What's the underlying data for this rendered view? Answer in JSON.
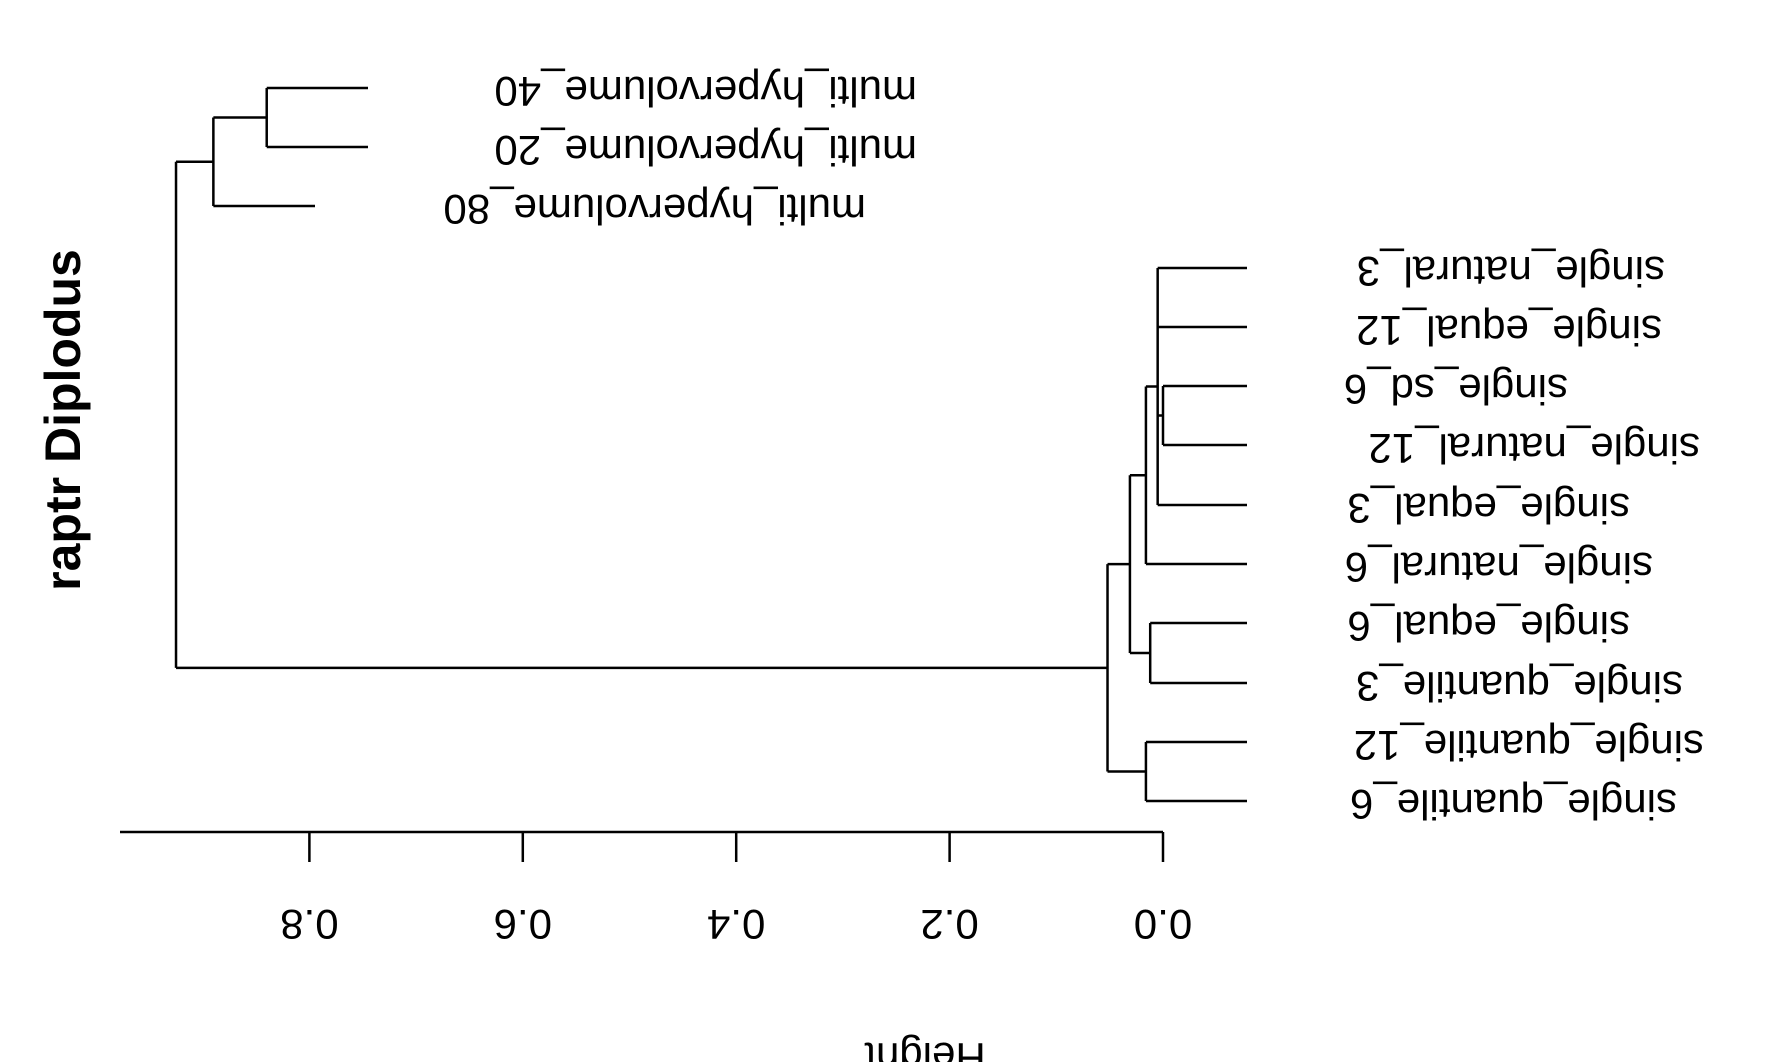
{
  "title": "raptr Diplodus",
  "axis": {
    "label": "Height",
    "ticks": [
      "0.0",
      "0.2",
      "0.4",
      "0.6",
      "0.8"
    ]
  },
  "chart_data": {
    "type": "dendrogram",
    "orientation": "horizontal, rendered flipped (text upside-down)",
    "xlabel": "Height",
    "xlim": [
      0,
      0.98
    ],
    "ticks": [
      0,
      0.2,
      0.4,
      0.6,
      0.8
    ],
    "leaves": [
      "multi_hypervolume_40",
      "multi_hypervolume_20",
      "multi_hypervolume_80",
      "single_natural_3",
      "single_equal_12",
      "single_sd_6",
      "single_natural_12",
      "single_equal_3",
      "single_natural_6",
      "single_equal_6",
      "single_quantile_3",
      "single_quantile_12",
      "single_quantile_6"
    ],
    "merges": [
      {
        "members": [
          "multi_hypervolume_40",
          "multi_hypervolume_20"
        ],
        "height": 0.84
      },
      {
        "members": [
          "multi_hypervolume_40",
          "multi_hypervolume_20",
          "multi_hypervolume_80"
        ],
        "height": 0.89
      },
      {
        "members": [
          "single_sd_6",
          "single_natural_12"
        ],
        "height": 0.0
      },
      {
        "members": [
          "single_natural_3",
          "single_equal_12",
          "single_sd_6",
          "single_natural_12",
          "single_equal_3"
        ],
        "height": 0.005
      },
      {
        "members": [
          "single_natural_3",
          "single_equal_12",
          "single_sd_6",
          "single_natural_12",
          "single_equal_3",
          "single_natural_6"
        ],
        "height": 0.016
      },
      {
        "members": [
          "single_equal_6",
          "single_quantile_3"
        ],
        "height": 0.012
      },
      {
        "members": [
          "single_natural_3",
          "single_equal_12",
          "single_sd_6",
          "single_natural_12",
          "single_equal_3",
          "single_natural_6",
          "single_equal_6",
          "single_quantile_3"
        ],
        "height": 0.031
      },
      {
        "members": [
          "single_quantile_12",
          "single_quantile_6"
        ],
        "height": 0.016
      },
      {
        "members": [
          "single_natural_3",
          "single_equal_12",
          "single_sd_6",
          "single_natural_12",
          "single_equal_3",
          "single_natural_6",
          "single_equal_6",
          "single_quantile_3",
          "single_quantile_12",
          "single_quantile_6"
        ],
        "height": 0.052
      },
      {
        "members": [
          "all"
        ],
        "height": 0.925
      }
    ]
  }
}
